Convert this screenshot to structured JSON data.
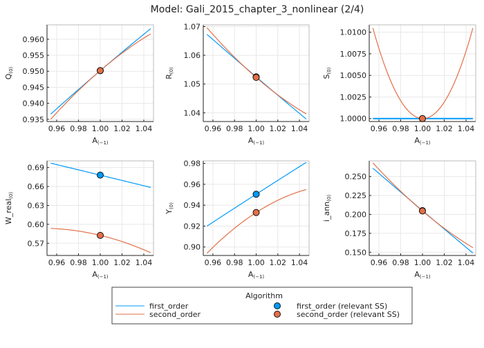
{
  "title": "Model: Gali_2015_chapter_3_nonlinear  (2/4)",
  "colors": {
    "first_order": "#009AFA",
    "second_order": "#E36F47"
  },
  "legend": {
    "title": "Algorithm",
    "placement": "bottom-center",
    "items": [
      {
        "label": "first_order",
        "kind": "line",
        "series": "first_order"
      },
      {
        "label": "second_order",
        "kind": "line",
        "series": "second_order"
      },
      {
        "label": "first_order (relevant SS)",
        "kind": "marker",
        "series": "first_order"
      },
      {
        "label": "second_order (relevant SS)",
        "kind": "marker",
        "series": "second_order"
      }
    ]
  },
  "chart_data": [
    {
      "type": "line",
      "xlabel": "A",
      "xlabel_sub": "(−1)",
      "ylabel": "Q",
      "ylabel_sub": "(0)",
      "xlim": [
        0.9511,
        1.0489
      ],
      "ylim": [
        0.9343,
        0.9645
      ],
      "grid": true,
      "xticks": [
        "0.96",
        "0.98",
        "1.00",
        "1.02",
        "1.04"
      ],
      "yticks": [
        "0.935",
        "0.940",
        "0.945",
        "0.950",
        "0.955",
        "0.960"
      ],
      "x": [
        0.9545,
        1.0,
        1.0463
      ],
      "series": [
        {
          "name": "first_order",
          "values": [
            0.9366,
            0.9502,
            0.9633
          ]
        },
        {
          "name": "second_order",
          "values": [
            0.935,
            0.9502,
            0.9617
          ]
        }
      ],
      "ss": {
        "first_order": 0.9502,
        "second_order": 0.9502
      }
    },
    {
      "type": "line",
      "xlabel": "A",
      "xlabel_sub": "(−1)",
      "ylabel": "R",
      "ylabel_sub": "(0)",
      "xlim": [
        0.9511,
        1.0489
      ],
      "ylim": [
        1.03695,
        1.0706
      ],
      "grid": true,
      "xticks": [
        "0.96",
        "0.98",
        "1.00",
        "1.02",
        "1.04"
      ],
      "yticks": [
        "1.04",
        "1.05",
        "1.06",
        "1.07"
      ],
      "x": [
        0.9545,
        1.0,
        1.0463
      ],
      "series": [
        {
          "name": "first_order",
          "values": [
            1.0673,
            1.0525,
            1.0378
          ]
        },
        {
          "name": "second_order",
          "values": [
            1.0696,
            1.0523,
            1.0396
          ]
        }
      ],
      "ss": {
        "first_order": 1.0525,
        "second_order": 1.0523
      }
    },
    {
      "type": "line",
      "xlabel": "A",
      "xlabel_sub": "(−1)",
      "ylabel": "S",
      "ylabel_sub": "(0)",
      "xlim": [
        0.9511,
        1.0489
      ],
      "ylim": [
        0.99966,
        1.01085
      ],
      "grid": true,
      "xticks": [
        "0.96",
        "0.98",
        "1.00",
        "1.02",
        "1.04"
      ],
      "yticks": [
        "1.0000",
        "1.0025",
        "1.0050",
        "1.0075",
        "1.0100"
      ],
      "x": [
        0.9545,
        1.0,
        1.0463
      ],
      "series": [
        {
          "name": "first_order",
          "values": [
            1.0,
            1.0,
            1.0
          ]
        },
        {
          "name": "second_order",
          "values": [
            1.01048,
            1.0,
            1.01048
          ]
        }
      ],
      "ss": {
        "first_order": 1.0,
        "second_order": 1.0
      }
    },
    {
      "type": "line",
      "xlabel": "A",
      "xlabel_sub": "(−1)",
      "ylabel": "W_real",
      "ylabel_sub": "(0)",
      "xlim": [
        0.9511,
        1.0489
      ],
      "ylim": [
        0.5506,
        0.7006
      ],
      "grid": true,
      "xticks": [
        "0.96",
        "0.98",
        "1.00",
        "1.02",
        "1.04"
      ],
      "yticks": [
        "0.57",
        "0.60",
        "0.63",
        "0.66",
        "0.69"
      ],
      "x": [
        0.9545,
        1.0,
        1.0463
      ],
      "series": [
        {
          "name": "first_order",
          "values": [
            0.697,
            0.678,
            0.6585
          ]
        },
        {
          "name": "second_order",
          "values": [
            0.5935,
            0.5825,
            0.555
          ]
        }
      ],
      "ss": {
        "first_order": 0.678,
        "second_order": 0.5825
      }
    },
    {
      "type": "line",
      "xlabel": "A",
      "xlabel_sub": "(−1)",
      "ylabel": "Y",
      "ylabel_sub": "(0)",
      "xlim": [
        0.9511,
        1.0489
      ],
      "ylim": [
        0.8919,
        0.9824
      ],
      "grid": true,
      "xticks": [
        "0.96",
        "0.98",
        "1.00",
        "1.02",
        "1.04"
      ],
      "yticks": [
        "0.90",
        "0.92",
        "0.94",
        "0.96",
        "0.98"
      ],
      "x": [
        0.9545,
        1.0,
        1.0463
      ],
      "series": [
        {
          "name": "first_order",
          "values": [
            0.92,
            0.9505,
            0.981
          ]
        },
        {
          "name": "second_order",
          "values": [
            0.894,
            0.933,
            0.955
          ]
        }
      ],
      "ss": {
        "first_order": 0.9505,
        "second_order": 0.933
      }
    },
    {
      "type": "line",
      "xlabel": "A",
      "xlabel_sub": "(−1)",
      "ylabel": "i_ann",
      "ylabel_sub": "(0)",
      "xlim": [
        0.9511,
        1.0489
      ],
      "ylim": [
        0.1457,
        0.2707
      ],
      "grid": true,
      "xticks": [
        "0.96",
        "0.98",
        "1.00",
        "1.02",
        "1.04"
      ],
      "yticks": [
        "0.150",
        "0.175",
        "0.200",
        "0.225",
        "0.250"
      ],
      "x": [
        0.9545,
        1.0,
        1.0463
      ],
      "series": [
        {
          "name": "first_order",
          "values": [
            0.261,
            0.205,
            0.149
          ]
        },
        {
          "name": "second_order",
          "values": [
            0.268,
            0.2045,
            0.156
          ]
        }
      ],
      "ss": {
        "first_order": 0.205,
        "second_order": 0.2045
      }
    }
  ]
}
